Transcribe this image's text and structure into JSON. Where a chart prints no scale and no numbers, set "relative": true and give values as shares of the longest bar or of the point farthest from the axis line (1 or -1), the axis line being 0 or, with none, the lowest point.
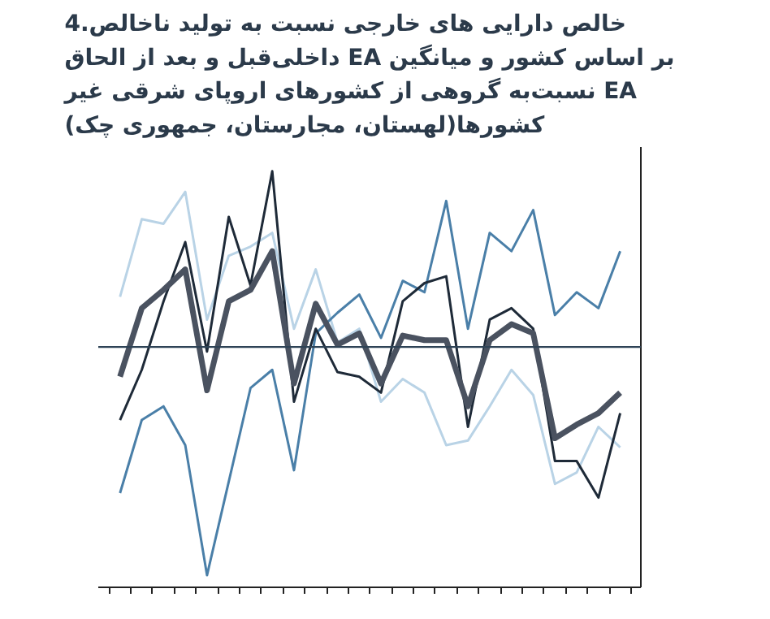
{
  "chart_data": {
    "type": "line",
    "relative": true,
    "title": "4.خالص دارایی های خارجی نسبت به تولید ناخالص\nداخلی‌قبل و بعد از الحاق EA بر اساس کشور و میانگین\nنسبت‌به گروهی از کشورهای اروپای شرقی غیر EA\nکشورها(لهستان، مجارستان، جمهوری چک)",
    "categories": [
      null,
      null,
      null,
      null,
      null,
      null,
      null,
      null,
      null,
      null,
      null,
      null,
      null,
      null,
      null,
      null,
      null,
      null,
      null,
      null,
      null,
      null,
      null,
      null
    ],
    "tick_labels": false,
    "grid": false,
    "series": [
      {
        "color": "#b9d3e6",
        "values": [
          0.22,
          0.56,
          0.54,
          0.68,
          0.12,
          0.4,
          0.44,
          0.5,
          0.08,
          0.34,
          0.02,
          0.08,
          -0.24,
          -0.14,
          -0.2,
          -0.43,
          -0.41,
          -0.26,
          -0.1,
          -0.21,
          -0.6,
          -0.55,
          -0.35,
          -0.44
        ]
      },
      {
        "color": "#4a7fa8",
        "values": [
          -0.64,
          -0.32,
          -0.26,
          -0.43,
          -1,
          -0.59,
          -0.18,
          -0.1,
          -0.54,
          0.06,
          0.15,
          0.23,
          0.04,
          0.29,
          0.24,
          0.64,
          0.08,
          0.5,
          0.42,
          0.6,
          0.14,
          0.24,
          0.17,
          0.42
        ]
      },
      {
        "color": "#1e2a38",
        "values": [
          -0.32,
          -0.1,
          0.2,
          0.46,
          -0.02,
          0.57,
          0.27,
          0.77,
          -0.24,
          0.08,
          -0.11,
          -0.13,
          -0.2,
          0.2,
          0.28,
          0.31,
          -0.35,
          0.12,
          0.17,
          0.08,
          -0.5,
          -0.5,
          -0.66,
          -0.29
        ]
      },
      {
        "color": "#4a5260",
        "values": [
          -0.13,
          0.17,
          0.25,
          0.34,
          -0.19,
          0.2,
          0.25,
          0.42,
          -0.16,
          0.19,
          0.01,
          0.06,
          -0.16,
          0.05,
          0.03,
          0.03,
          -0.26,
          0.03,
          0.1,
          0.06,
          -0.4,
          -0.34,
          -0.29,
          -0.2
        ]
      }
    ]
  }
}
